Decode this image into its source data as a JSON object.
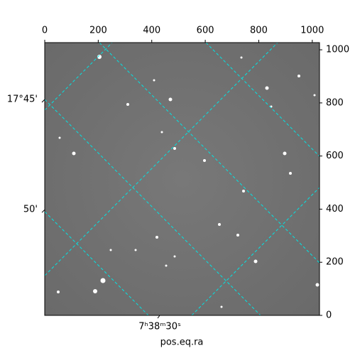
{
  "chart_data": {
    "type": "image",
    "xlabel": "pos.eq.ra",
    "xlim": [
      0,
      1027
    ],
    "ylim": [
      0,
      1027
    ],
    "xticks": [
      0,
      200,
      400,
      600,
      800,
      1000
    ],
    "yticks": [
      0,
      200,
      400,
      600,
      800,
      1000
    ],
    "dec_ticks": [
      {
        "value": 813,
        "label": "17°45'"
      },
      {
        "value": 398,
        "label": "50'"
      }
    ],
    "ra_ticks": [
      {
        "value": 430,
        "label": "7ʰ38ᵐ30ˢ"
      }
    ],
    "grid_color": "#00e5e5"
  }
}
